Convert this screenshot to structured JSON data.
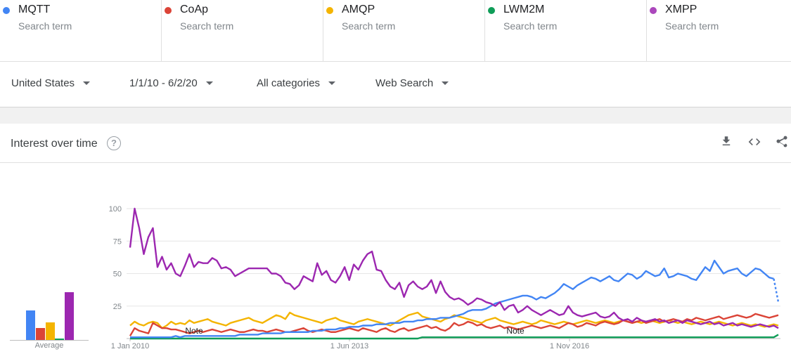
{
  "terms": [
    {
      "name": "MQTT",
      "sub": "Search term",
      "color": "#4285f4"
    },
    {
      "name": "CoAp",
      "sub": "Search term",
      "color": "#db4437"
    },
    {
      "name": "AMQP",
      "sub": "Search term",
      "color": "#f4b400"
    },
    {
      "name": "LWM2M",
      "sub": "Search term",
      "color": "#0f9d58"
    },
    {
      "name": "XMPP",
      "sub": "Search term",
      "color": "#ab47bc"
    }
  ],
  "filters": {
    "region": "United States",
    "date_range": "1/1/10 - 6/2/20",
    "category": "All categories",
    "search_type": "Web Search"
  },
  "card": {
    "title": "Interest over time",
    "help_glyph": "?",
    "download_icon": "download-icon",
    "embed_icon": "embed-code-icon",
    "share_icon": "share-icon"
  },
  "average": {
    "label": "Average",
    "values": [
      22,
      9,
      13,
      1,
      36
    ]
  },
  "chart_data": {
    "type": "line",
    "x_tick_labels": [
      "1 Jan 2010",
      "1 Jun 2013",
      "1 Nov 2016"
    ],
    "y_ticks": [
      25,
      50,
      75,
      100
    ],
    "ylim": [
      0,
      100
    ],
    "notes": [
      "Note",
      "Note"
    ],
    "series": [
      {
        "name": "MQTT",
        "color": "#4285f4",
        "values": [
          1,
          1,
          1,
          1,
          1,
          1,
          1,
          1,
          1,
          1,
          2,
          1,
          2,
          2,
          2,
          2,
          2,
          2,
          2,
          2,
          2,
          2,
          2,
          2,
          3,
          3,
          3,
          3,
          3,
          4,
          4,
          4,
          4,
          4,
          5,
          5,
          5,
          5,
          5,
          5,
          6,
          6,
          6,
          7,
          7,
          7,
          8,
          8,
          9,
          9,
          9,
          10,
          10,
          10,
          11,
          11,
          11,
          12,
          12,
          12,
          13,
          13,
          13,
          14,
          14,
          15,
          15,
          15,
          16,
          16,
          16,
          17,
          18,
          19,
          21,
          22,
          22,
          22,
          23,
          25,
          27,
          28,
          29,
          30,
          31,
          32,
          33,
          33,
          32,
          30,
          32,
          31,
          33,
          35,
          38,
          42,
          40,
          38,
          41,
          43,
          45,
          47,
          46,
          44,
          46,
          48,
          45,
          44,
          47,
          50,
          49,
          46,
          48,
          52,
          50,
          48,
          49,
          54,
          47,
          48,
          50,
          49,
          48,
          46,
          45,
          50,
          55,
          52,
          60,
          55,
          50,
          52,
          53,
          54,
          50,
          48,
          51,
          54,
          53,
          50,
          47,
          46,
          28
        ]
      },
      {
        "name": "CoAp",
        "color": "#db4437",
        "values": [
          2,
          8,
          6,
          5,
          4,
          12,
          10,
          8,
          8,
          7,
          7,
          6,
          5,
          4,
          5,
          6,
          5,
          6,
          7,
          6,
          5,
          6,
          7,
          6,
          5,
          5,
          6,
          7,
          6,
          6,
          5,
          6,
          7,
          6,
          5,
          5,
          6,
          7,
          8,
          6,
          5,
          6,
          7,
          6,
          5,
          5,
          6,
          7,
          8,
          7,
          6,
          8,
          7,
          6,
          5,
          7,
          8,
          6,
          5,
          7,
          8,
          6,
          7,
          8,
          9,
          10,
          8,
          9,
          7,
          6,
          8,
          12,
          10,
          11,
          13,
          12,
          10,
          11,
          9,
          8,
          9,
          10,
          8,
          9,
          8,
          7,
          8,
          9,
          10,
          9,
          8,
          9,
          10,
          9,
          8,
          10,
          12,
          11,
          9,
          10,
          12,
          11,
          10,
          12,
          13,
          12,
          11,
          12,
          14,
          13,
          12,
          13,
          14,
          12,
          13,
          14,
          15,
          13,
          14,
          15,
          14,
          13,
          15,
          14,
          16,
          15,
          14,
          15,
          16,
          17,
          15,
          16,
          17,
          18,
          17,
          16,
          17,
          19,
          18,
          17,
          16,
          17,
          18
        ]
      },
      {
        "name": "AMQP",
        "color": "#f4b400",
        "values": [
          10,
          13,
          11,
          10,
          12,
          13,
          12,
          8,
          10,
          13,
          11,
          12,
          11,
          14,
          12,
          13,
          14,
          15,
          13,
          12,
          11,
          10,
          12,
          13,
          14,
          15,
          16,
          14,
          13,
          12,
          14,
          16,
          18,
          17,
          15,
          20,
          18,
          17,
          16,
          15,
          14,
          13,
          12,
          14,
          15,
          16,
          14,
          13,
          12,
          11,
          13,
          14,
          15,
          14,
          13,
          12,
          11,
          10,
          12,
          14,
          16,
          18,
          19,
          20,
          17,
          16,
          15,
          14,
          13,
          15,
          16,
          18,
          17,
          16,
          15,
          14,
          13,
          12,
          14,
          15,
          16,
          14,
          13,
          12,
          11,
          12,
          13,
          12,
          11,
          12,
          14,
          13,
          12,
          11,
          12,
          13,
          12,
          11,
          12,
          13,
          14,
          13,
          12,
          13,
          14,
          13,
          12,
          13,
          14,
          13,
          12,
          13,
          12,
          13,
          14,
          13,
          12,
          13,
          14,
          13,
          12,
          13,
          12,
          11,
          12,
          13,
          12,
          11,
          12,
          13,
          12,
          11,
          10,
          11,
          12,
          11,
          10,
          11,
          10,
          9,
          10,
          11,
          10
        ]
      },
      {
        "name": "LWM2M",
        "color": "#0f9d58",
        "values": [
          0,
          0,
          0,
          0,
          0,
          0,
          0,
          0,
          0,
          0,
          0,
          0,
          0,
          0,
          0,
          0,
          0,
          0,
          0,
          0,
          0,
          0,
          0,
          0,
          0,
          0,
          0,
          0,
          0,
          0,
          0,
          0,
          0,
          0,
          0,
          0,
          0,
          0,
          0,
          0,
          0,
          0,
          0,
          0,
          0,
          0,
          0,
          0,
          0,
          0,
          0,
          0,
          0,
          0,
          0,
          0,
          0,
          0,
          0,
          0,
          0,
          0,
          0,
          0,
          1,
          1,
          1,
          1,
          1,
          1,
          1,
          1,
          1,
          1,
          1,
          1,
          1,
          1,
          1,
          1,
          1,
          1,
          1,
          1,
          1,
          1,
          1,
          1,
          1,
          1,
          1,
          1,
          1,
          1,
          1,
          1,
          1,
          1,
          1,
          1,
          1,
          1,
          1,
          1,
          1,
          1,
          1,
          1,
          1,
          1,
          1,
          1,
          1,
          1,
          1,
          1,
          1,
          1,
          1,
          1,
          1,
          1,
          1,
          1,
          1,
          1,
          1,
          1,
          1,
          1,
          1,
          1,
          1,
          1,
          1,
          1,
          1,
          1,
          1,
          1,
          1,
          1,
          3
        ]
      },
      {
        "name": "XMPP",
        "color": "#9c27b0",
        "values": [
          70,
          100,
          85,
          65,
          78,
          85,
          55,
          63,
          53,
          58,
          50,
          48,
          56,
          65,
          55,
          59,
          58,
          58,
          62,
          60,
          54,
          55,
          53,
          48,
          50,
          52,
          54,
          54,
          54,
          54,
          54,
          50,
          50,
          48,
          43,
          42,
          38,
          41,
          48,
          46,
          44,
          58,
          49,
          52,
          45,
          43,
          48,
          55,
          45,
          57,
          53,
          60,
          65,
          67,
          53,
          52,
          45,
          40,
          38,
          43,
          32,
          41,
          44,
          40,
          38,
          40,
          45,
          35,
          44,
          36,
          32,
          30,
          31,
          29,
          26,
          28,
          31,
          30,
          28,
          27,
          25,
          28,
          22,
          25,
          26,
          20,
          22,
          25,
          22,
          20,
          18,
          20,
          22,
          20,
          18,
          19,
          25,
          20,
          18,
          17,
          18,
          19,
          20,
          17,
          16,
          17,
          20,
          16,
          14,
          15,
          13,
          16,
          14,
          13,
          14,
          15,
          13,
          14,
          12,
          13,
          14,
          12,
          14,
          13,
          12,
          11,
          12,
          13,
          11,
          12,
          10,
          11,
          12,
          10,
          11,
          10,
          9,
          10,
          11,
          10,
          9,
          10,
          8
        ]
      }
    ]
  }
}
